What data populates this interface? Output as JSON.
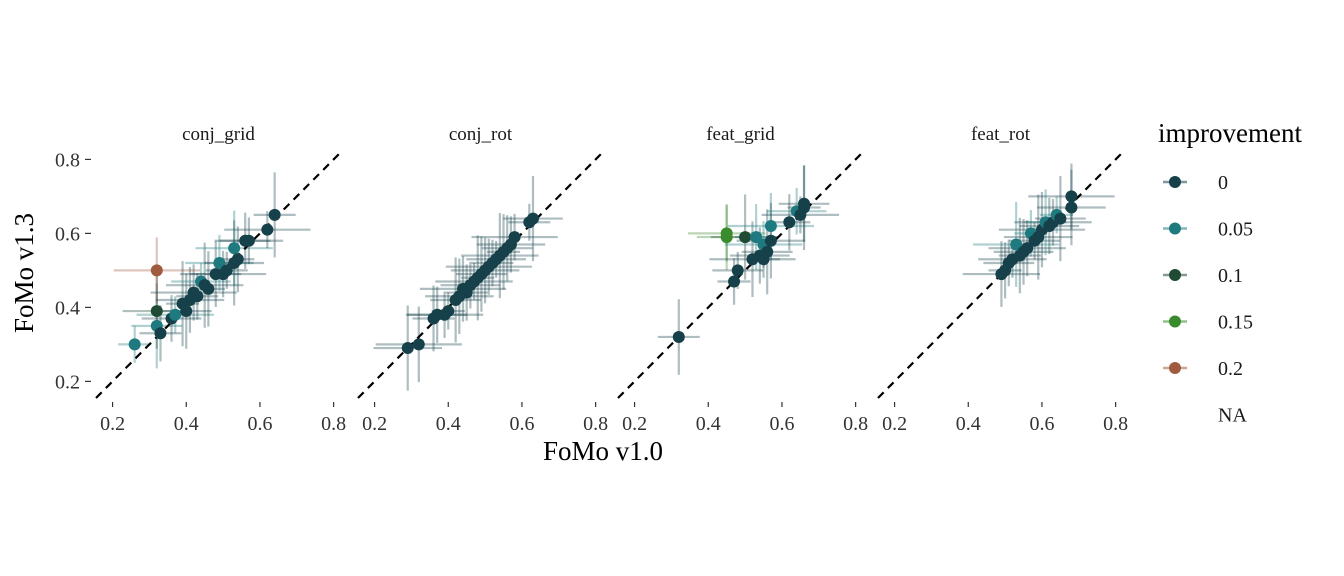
{
  "figure": {
    "xlabel": "FoMo v1.0",
    "ylabel": "FoMo v1.3"
  },
  "legend": {
    "title": "improvement",
    "entries": [
      {
        "label": "0",
        "color": "#17414a"
      },
      {
        "label": "0.05",
        "color": "#1e7a7f"
      },
      {
        "label": "0.1",
        "color": "#1f4a33"
      },
      {
        "label": "0.15",
        "color": "#3a8a2e"
      },
      {
        "label": "0.2",
        "color": "#a05a3e"
      },
      {
        "label": "NA",
        "color": null
      }
    ]
  },
  "chart_data": [
    {
      "type": "scatter",
      "title": "conj_grid",
      "xlim": [
        0.2,
        0.8
      ],
      "ylim": [
        0.2,
        0.8
      ],
      "xticks": [
        "0.2",
        "0.4",
        "0.6",
        "0.8"
      ],
      "yticks": [
        "0.2",
        "0.4",
        "0.6",
        "0.8"
      ],
      "reference_line": "y = x (dashed)",
      "points": [
        {
          "x": 0.26,
          "y": 0.3,
          "improvement": "0.05"
        },
        {
          "x": 0.32,
          "y": 0.35,
          "improvement": "0.05"
        },
        {
          "x": 0.32,
          "y": 0.39,
          "improvement": "0.1"
        },
        {
          "x": 0.32,
          "y": 0.5,
          "improvement": "0.2"
        },
        {
          "x": 0.33,
          "y": 0.33,
          "improvement": "0"
        },
        {
          "x": 0.36,
          "y": 0.37,
          "improvement": "0"
        },
        {
          "x": 0.37,
          "y": 0.38,
          "improvement": "0.05"
        },
        {
          "x": 0.39,
          "y": 0.41,
          "improvement": "0"
        },
        {
          "x": 0.4,
          "y": 0.39,
          "improvement": "0"
        },
        {
          "x": 0.41,
          "y": 0.42,
          "improvement": "0"
        },
        {
          "x": 0.42,
          "y": 0.44,
          "improvement": "0"
        },
        {
          "x": 0.43,
          "y": 0.43,
          "improvement": "0"
        },
        {
          "x": 0.44,
          "y": 0.47,
          "improvement": "0.05"
        },
        {
          "x": 0.45,
          "y": 0.46,
          "improvement": "0"
        },
        {
          "x": 0.46,
          "y": 0.45,
          "improvement": "0"
        },
        {
          "x": 0.48,
          "y": 0.49,
          "improvement": "0"
        },
        {
          "x": 0.49,
          "y": 0.52,
          "improvement": "0.05"
        },
        {
          "x": 0.5,
          "y": 0.49,
          "improvement": "0"
        },
        {
          "x": 0.51,
          "y": 0.5,
          "improvement": "0"
        },
        {
          "x": 0.53,
          "y": 0.52,
          "improvement": "0"
        },
        {
          "x": 0.53,
          "y": 0.56,
          "improvement": "0.05"
        },
        {
          "x": 0.54,
          "y": 0.53,
          "improvement": "0"
        },
        {
          "x": 0.56,
          "y": 0.58,
          "improvement": "0"
        },
        {
          "x": 0.57,
          "y": 0.58,
          "improvement": "0"
        },
        {
          "x": 0.62,
          "y": 0.61,
          "improvement": "0"
        },
        {
          "x": 0.64,
          "y": 0.65,
          "improvement": "0"
        }
      ]
    },
    {
      "type": "scatter",
      "title": "conj_rot",
      "xlim": [
        0.2,
        0.8
      ],
      "ylim": [
        0.2,
        0.8
      ],
      "xticks": [
        "0.2",
        "0.4",
        "0.6",
        "0.8"
      ],
      "yticks": [
        "0.2",
        "0.4",
        "0.6",
        "0.8"
      ],
      "reference_line": "y = x (dashed)",
      "points": [
        {
          "x": 0.29,
          "y": 0.29,
          "improvement": "0"
        },
        {
          "x": 0.32,
          "y": 0.3,
          "improvement": "0"
        },
        {
          "x": 0.36,
          "y": 0.37,
          "improvement": "0"
        },
        {
          "x": 0.37,
          "y": 0.38,
          "improvement": "0"
        },
        {
          "x": 0.39,
          "y": 0.38,
          "improvement": "0"
        },
        {
          "x": 0.4,
          "y": 0.39,
          "improvement": "0"
        },
        {
          "x": 0.42,
          "y": 0.42,
          "improvement": "0"
        },
        {
          "x": 0.43,
          "y": 0.43,
          "improvement": "0"
        },
        {
          "x": 0.44,
          "y": 0.45,
          "improvement": "0"
        },
        {
          "x": 0.45,
          "y": 0.44,
          "improvement": "0"
        },
        {
          "x": 0.46,
          "y": 0.46,
          "improvement": "0"
        },
        {
          "x": 0.47,
          "y": 0.47,
          "improvement": "0"
        },
        {
          "x": 0.48,
          "y": 0.48,
          "improvement": "0"
        },
        {
          "x": 0.49,
          "y": 0.49,
          "improvement": "0"
        },
        {
          "x": 0.5,
          "y": 0.5,
          "improvement": "0"
        },
        {
          "x": 0.51,
          "y": 0.51,
          "improvement": "0"
        },
        {
          "x": 0.52,
          "y": 0.52,
          "improvement": "0"
        },
        {
          "x": 0.53,
          "y": 0.53,
          "improvement": "0"
        },
        {
          "x": 0.54,
          "y": 0.54,
          "improvement": "0"
        },
        {
          "x": 0.55,
          "y": 0.55,
          "improvement": "0"
        },
        {
          "x": 0.56,
          "y": 0.56,
          "improvement": "0"
        },
        {
          "x": 0.57,
          "y": 0.57,
          "improvement": "0"
        },
        {
          "x": 0.58,
          "y": 0.59,
          "improvement": "0"
        },
        {
          "x": 0.62,
          "y": 0.63,
          "improvement": "0"
        },
        {
          "x": 0.63,
          "y": 0.64,
          "improvement": "0"
        }
      ]
    },
    {
      "type": "scatter",
      "title": "feat_grid",
      "xlim": [
        0.2,
        0.8
      ],
      "ylim": [
        0.2,
        0.8
      ],
      "xticks": [
        "0.2",
        "0.4",
        "0.6",
        "0.8"
      ],
      "yticks": [
        "0.2",
        "0.4",
        "0.6",
        "0.8"
      ],
      "reference_line": "y = x (dashed)",
      "points": [
        {
          "x": 0.32,
          "y": 0.32,
          "improvement": "0"
        },
        {
          "x": 0.45,
          "y": 0.59,
          "improvement": "0.15"
        },
        {
          "x": 0.45,
          "y": 0.6,
          "improvement": "0.15"
        },
        {
          "x": 0.47,
          "y": 0.47,
          "improvement": "0"
        },
        {
          "x": 0.48,
          "y": 0.5,
          "improvement": "0"
        },
        {
          "x": 0.5,
          "y": 0.59,
          "improvement": "0.1"
        },
        {
          "x": 0.52,
          "y": 0.53,
          "improvement": "0"
        },
        {
          "x": 0.53,
          "y": 0.59,
          "improvement": "0.05"
        },
        {
          "x": 0.54,
          "y": 0.54,
          "improvement": "0"
        },
        {
          "x": 0.55,
          "y": 0.57,
          "improvement": "0.05"
        },
        {
          "x": 0.55,
          "y": 0.53,
          "improvement": "0"
        },
        {
          "x": 0.56,
          "y": 0.55,
          "improvement": "0"
        },
        {
          "x": 0.57,
          "y": 0.58,
          "improvement": "0"
        },
        {
          "x": 0.57,
          "y": 0.62,
          "improvement": "0.05"
        },
        {
          "x": 0.62,
          "y": 0.63,
          "improvement": "0"
        },
        {
          "x": 0.64,
          "y": 0.66,
          "improvement": "0.05"
        },
        {
          "x": 0.65,
          "y": 0.65,
          "improvement": "0"
        },
        {
          "x": 0.66,
          "y": 0.67,
          "improvement": "0"
        },
        {
          "x": 0.66,
          "y": 0.68,
          "improvement": "0"
        }
      ]
    },
    {
      "type": "scatter",
      "title": "feat_rot",
      "xlim": [
        0.2,
        0.8
      ],
      "ylim": [
        0.2,
        0.8
      ],
      "xticks": [
        "0.2",
        "0.4",
        "0.6",
        "0.8"
      ],
      "yticks": [
        "0.2",
        "0.4",
        "0.6",
        "0.8"
      ],
      "reference_line": "y = x (dashed)",
      "points": [
        {
          "x": 0.49,
          "y": 0.49,
          "improvement": "0"
        },
        {
          "x": 0.5,
          "y": 0.5,
          "improvement": "0"
        },
        {
          "x": 0.51,
          "y": 0.52,
          "improvement": "0"
        },
        {
          "x": 0.52,
          "y": 0.53,
          "improvement": "0"
        },
        {
          "x": 0.53,
          "y": 0.57,
          "improvement": "0.05"
        },
        {
          "x": 0.54,
          "y": 0.54,
          "improvement": "0"
        },
        {
          "x": 0.55,
          "y": 0.55,
          "improvement": "0"
        },
        {
          "x": 0.56,
          "y": 0.56,
          "improvement": "0"
        },
        {
          "x": 0.57,
          "y": 0.6,
          "improvement": "0.05"
        },
        {
          "x": 0.58,
          "y": 0.58,
          "improvement": "0"
        },
        {
          "x": 0.59,
          "y": 0.59,
          "improvement": "0"
        },
        {
          "x": 0.6,
          "y": 0.61,
          "improvement": "0"
        },
        {
          "x": 0.61,
          "y": 0.63,
          "improvement": "0.05"
        },
        {
          "x": 0.62,
          "y": 0.62,
          "improvement": "0"
        },
        {
          "x": 0.63,
          "y": 0.63,
          "improvement": "0"
        },
        {
          "x": 0.64,
          "y": 0.65,
          "improvement": "0.05"
        },
        {
          "x": 0.65,
          "y": 0.64,
          "improvement": "0"
        },
        {
          "x": 0.68,
          "y": 0.67,
          "improvement": "0"
        },
        {
          "x": 0.68,
          "y": 0.7,
          "improvement": "0"
        }
      ]
    }
  ]
}
